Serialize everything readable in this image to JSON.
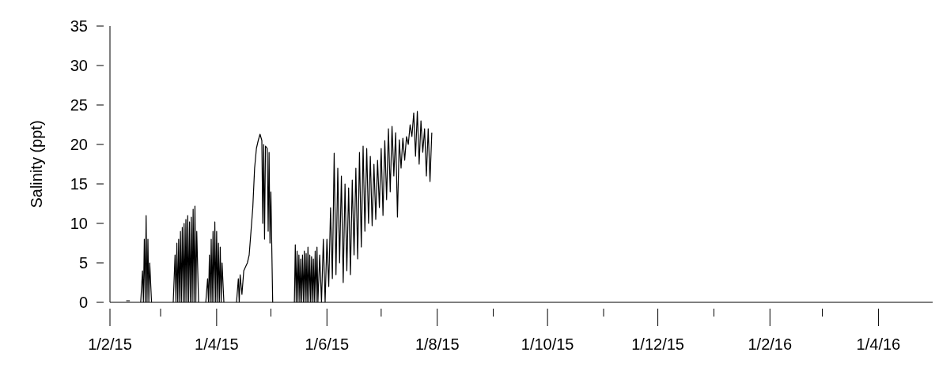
{
  "chart_data": {
    "type": "line",
    "ylabel": "Salinity (ppt)",
    "grid": false,
    "xlim": [
      "2015-02-01",
      "2016-05-01"
    ],
    "xticks": [
      {
        "value": "2015-02-01",
        "label": "1/2/15"
      },
      {
        "value": "2015-03-01",
        "label": null
      },
      {
        "value": "2015-04-01",
        "label": "1/4/15"
      },
      {
        "value": "2015-05-01",
        "label": null
      },
      {
        "value": "2015-06-01",
        "label": "1/6/15"
      },
      {
        "value": "2015-07-01",
        "label": null
      },
      {
        "value": "2015-08-01",
        "label": "1/8/15"
      },
      {
        "value": "2015-09-01",
        "label": null
      },
      {
        "value": "2015-10-01",
        "label": "1/10/15"
      },
      {
        "value": "2015-11-01",
        "label": null
      },
      {
        "value": "2015-12-01",
        "label": "1/12/15"
      },
      {
        "value": "2016-01-01",
        "label": null
      },
      {
        "value": "2016-02-01",
        "label": "1/2/16"
      },
      {
        "value": "2016-03-01",
        "label": null
      },
      {
        "value": "2016-04-01",
        "label": "1/4/16"
      }
    ],
    "ylim": [
      0,
      35
    ],
    "yticks": [
      0,
      5,
      10,
      15,
      20,
      25,
      30,
      35
    ],
    "x": [
      "2015-02-10",
      "2015-02-12",
      "2015-02-14",
      "2015-02-18",
      "2015-02-19",
      "2015-02-19T12:00",
      "2015-02-20",
      "2015-02-20T12:00",
      "2015-02-21",
      "2015-02-21T12:00",
      "2015-02-22",
      "2015-02-22T12:00",
      "2015-02-23",
      "2015-02-24",
      "2015-02-27",
      "2015-03-08",
      "2015-03-09",
      "2015-03-09T12:00",
      "2015-03-10",
      "2015-03-10T12:00",
      "2015-03-11",
      "2015-03-11T12:00",
      "2015-03-12",
      "2015-03-12T12:00",
      "2015-03-13",
      "2015-03-13T12:00",
      "2015-03-14",
      "2015-03-14T12:00",
      "2015-03-15",
      "2015-03-15T12:00",
      "2015-03-16",
      "2015-03-16T12:00",
      "2015-03-17",
      "2015-03-17T12:00",
      "2015-03-18",
      "2015-03-18T12:00",
      "2015-03-19",
      "2015-03-19T12:00",
      "2015-03-20",
      "2015-03-20T12:00",
      "2015-03-21",
      "2015-03-22",
      "2015-03-23",
      "2015-03-26",
      "2015-03-27",
      "2015-03-27T12:00",
      "2015-03-28",
      "2015-03-28T12:00",
      "2015-03-29",
      "2015-03-29T12:00",
      "2015-03-30",
      "2015-03-30T12:00",
      "2015-03-31",
      "2015-03-31T12:00",
      "2015-04-01",
      "2015-04-01T12:00",
      "2015-04-02",
      "2015-04-02T12:00",
      "2015-04-03",
      "2015-04-03T12:00",
      "2015-04-04",
      "2015-04-05",
      "2015-04-08",
      "2015-04-12",
      "2015-04-13",
      "2015-04-13T12:00",
      "2015-04-14",
      "2015-04-15",
      "2015-04-16",
      "2015-04-17",
      "2015-04-18",
      "2015-04-19",
      "2015-04-20",
      "2015-04-21",
      "2015-04-22",
      "2015-04-23",
      "2015-04-24",
      "2015-04-25",
      "2015-04-26",
      "2015-04-26T12:00",
      "2015-04-27",
      "2015-04-27T12:00",
      "2015-04-28",
      "2015-04-29",
      "2015-04-29T12:00",
      "2015-04-30",
      "2015-04-30T12:00",
      "2015-05-01",
      "2015-05-02",
      "2015-05-04",
      "2015-05-14",
      "2015-05-14T12:00",
      "2015-05-15",
      "2015-05-15T12:00",
      "2015-05-16",
      "2015-05-16T12:00",
      "2015-05-17",
      "2015-05-17T12:00",
      "2015-05-18",
      "2015-05-18T12:00",
      "2015-05-19",
      "2015-05-19T12:00",
      "2015-05-20",
      "2015-05-20T12:00",
      "2015-05-21",
      "2015-05-21T12:00",
      "2015-05-22",
      "2015-05-22T12:00",
      "2015-05-23",
      "2015-05-23T12:00",
      "2015-05-24",
      "2015-05-24T12:00",
      "2015-05-25",
      "2015-05-25T12:00",
      "2015-05-26",
      "2015-05-26T12:00",
      "2015-05-27",
      "2015-05-28",
      "2015-05-29",
      "2015-05-30",
      "2015-05-31",
      "2015-06-01",
      "2015-06-02",
      "2015-06-03",
      "2015-06-04",
      "2015-06-05",
      "2015-06-06",
      "2015-06-07",
      "2015-06-08",
      "2015-06-09",
      "2015-06-10",
      "2015-06-11",
      "2015-06-12",
      "2015-06-13",
      "2015-06-14",
      "2015-06-15",
      "2015-06-16",
      "2015-06-17",
      "2015-06-18",
      "2015-06-19",
      "2015-06-20",
      "2015-06-21",
      "2015-06-22",
      "2015-06-23",
      "2015-06-24",
      "2015-06-25",
      "2015-06-26",
      "2015-06-27",
      "2015-06-28",
      "2015-06-29",
      "2015-06-30",
      "2015-07-01",
      "2015-07-02",
      "2015-07-03",
      "2015-07-04",
      "2015-07-05",
      "2015-07-06",
      "2015-07-07",
      "2015-07-08",
      "2015-07-09",
      "2015-07-10",
      "2015-07-11",
      "2015-07-12",
      "2015-07-13",
      "2015-07-14",
      "2015-07-15",
      "2015-07-16",
      "2015-07-17",
      "2015-07-18",
      "2015-07-19",
      "2015-07-20",
      "2015-07-21",
      "2015-07-22",
      "2015-07-23",
      "2015-07-24",
      "2015-07-25",
      "2015-07-26",
      "2015-07-27",
      "2015-07-28",
      "2015-07-29"
    ],
    "series": [
      {
        "color": "#000000",
        "values": [
          0.2,
          0.2,
          null,
          0,
          4,
          0,
          8,
          0,
          11,
          0,
          8,
          0,
          5,
          0,
          null,
          0,
          6,
          0,
          7.5,
          0,
          8,
          0,
          9,
          0,
          9.5,
          0,
          10,
          0,
          10.5,
          0,
          11,
          0,
          10.2,
          0,
          10.8,
          0,
          11.8,
          0,
          12.2,
          0,
          9,
          0,
          null,
          0,
          3,
          0,
          6,
          0,
          8,
          0,
          9,
          0,
          10.2,
          0,
          9,
          0,
          7.5,
          0,
          7,
          0,
          5,
          0,
          null,
          0,
          3,
          0,
          3.5,
          1,
          4,
          4.5,
          5,
          6,
          9,
          12,
          17,
          19.5,
          20.5,
          21.3,
          20.5,
          10,
          20,
          8,
          19.8,
          19.5,
          9,
          19,
          7.5,
          14,
          0,
          null,
          0,
          7.3,
          0,
          6.5,
          0,
          6,
          0,
          5.5,
          0,
          6,
          0,
          6.5,
          0,
          6.2,
          0,
          7,
          0,
          6,
          0,
          5.8,
          0,
          5.5,
          0,
          6.5,
          0,
          7,
          0,
          6,
          0,
          8,
          0,
          8,
          2,
          12,
          3,
          18.9,
          3.5,
          17,
          5,
          16,
          2.5,
          15,
          4,
          14.5,
          3.5,
          15.5,
          6,
          17,
          5.5,
          19,
          7,
          19.8,
          9,
          19.5,
          10,
          18.5,
          9.7,
          17.5,
          10.5,
          18,
          12,
          19.5,
          11,
          20.5,
          13,
          22,
          14,
          22.3,
          16,
          21.5,
          10.8,
          20.6,
          17,
          20.8,
          18,
          21,
          20,
          22.5,
          21,
          24,
          18.5,
          24.2,
          17.5,
          23,
          19,
          22,
          16,
          22,
          15.3,
          21.5
        ]
      }
    ]
  }
}
